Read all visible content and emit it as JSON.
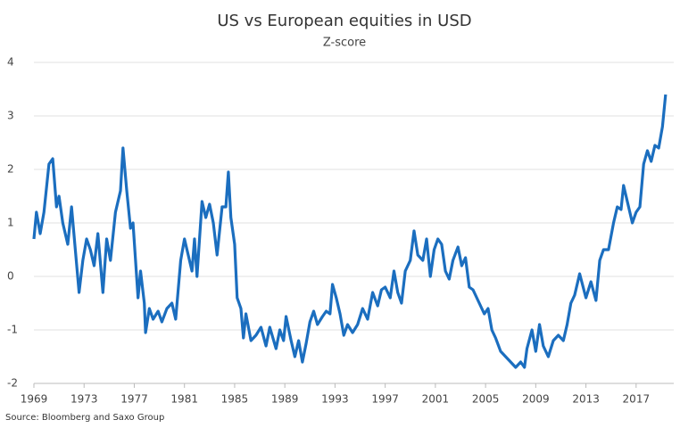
{
  "chart_data": {
    "type": "line",
    "title": "US vs European equities in USD",
    "subtitle": "Z-score",
    "source": "Source: Bloomberg and Saxo Group",
    "xlim": [
      1969,
      2020
    ],
    "xticks": [
      1969,
      1973,
      1977,
      1981,
      1985,
      1989,
      1993,
      1997,
      2001,
      2005,
      2009,
      2013,
      2017
    ],
    "ylim": [
      -2,
      4
    ],
    "yticks": [
      -2,
      -1,
      0,
      1,
      2,
      3,
      4
    ],
    "grid": true,
    "series": [
      {
        "color": "#1b6ebf",
        "x": [
          1969.0,
          1969.2,
          1969.5,
          1969.8,
          1970.2,
          1970.5,
          1970.8,
          1971.0,
          1971.3,
          1971.7,
          1972.0,
          1972.3,
          1972.6,
          1972.9,
          1973.2,
          1973.5,
          1973.8,
          1974.1,
          1974.5,
          1974.8,
          1975.1,
          1975.5,
          1975.9,
          1976.1,
          1976.4,
          1976.7,
          1976.9,
          1977.1,
          1977.3,
          1977.5,
          1977.8,
          1977.9,
          1978.2,
          1978.5,
          1978.9,
          1979.2,
          1979.6,
          1980.0,
          1980.3,
          1980.7,
          1981.0,
          1981.3,
          1981.6,
          1981.8,
          1982.0,
          1982.4,
          1982.7,
          1983.0,
          1983.3,
          1983.6,
          1984.0,
          1984.3,
          1984.5,
          1984.7,
          1985.0,
          1985.2,
          1985.5,
          1985.7,
          1985.9,
          1986.3,
          1986.7,
          1987.1,
          1987.5,
          1987.8,
          1988.3,
          1988.6,
          1988.9,
          1989.1,
          1989.5,
          1989.8,
          1990.1,
          1990.4,
          1990.7,
          1991.0,
          1991.3,
          1991.6,
          1992.0,
          1992.3,
          1992.6,
          1992.8,
          1993.1,
          1993.4,
          1993.7,
          1994.0,
          1994.4,
          1994.8,
          1995.2,
          1995.6,
          1996.0,
          1996.4,
          1996.7,
          1997.0,
          1997.4,
          1997.7,
          1998.0,
          1998.3,
          1998.6,
          1999.0,
          1999.3,
          1999.6,
          2000.0,
          2000.3,
          2000.6,
          2000.9,
          2001.2,
          2001.5,
          2001.8,
          2002.1,
          2002.4,
          2002.8,
          2003.1,
          2003.4,
          2003.7,
          2004.0,
          2004.5,
          2004.9,
          2005.2,
          2005.5,
          2005.8,
          2006.2,
          2006.6,
          2007.0,
          2007.4,
          2007.8,
          2008.1,
          2008.3,
          2008.7,
          2009.0,
          2009.3,
          2009.6,
          2010.0,
          2010.4,
          2010.8,
          2011.2,
          2011.5,
          2011.8,
          2012.1,
          2012.5,
          2013.0,
          2013.4,
          2013.8,
          2014.1,
          2014.4,
          2014.8,
          2015.2,
          2015.5,
          2015.8,
          2016.0,
          2016.3,
          2016.7,
          2017.0,
          2017.3,
          2017.6,
          2017.9,
          2018.2,
          2018.5,
          2018.8,
          2019.1,
          2019.35
        ],
        "values": [
          0.7,
          1.2,
          0.8,
          1.2,
          2.1,
          2.2,
          1.3,
          1.5,
          1.0,
          0.6,
          1.3,
          0.5,
          -0.3,
          0.3,
          0.7,
          0.5,
          0.2,
          0.8,
          -0.3,
          0.7,
          0.3,
          1.2,
          1.6,
          2.4,
          1.6,
          0.9,
          1.0,
          0.3,
          -0.4,
          0.1,
          -0.5,
          -1.05,
          -0.6,
          -0.8,
          -0.65,
          -0.85,
          -0.6,
          -0.5,
          -0.8,
          0.3,
          0.7,
          0.4,
          0.1,
          0.7,
          0.0,
          1.4,
          1.1,
          1.35,
          1.0,
          0.4,
          1.3,
          1.3,
          1.95,
          1.1,
          0.6,
          -0.4,
          -0.6,
          -1.15,
          -0.7,
          -1.2,
          -1.1,
          -0.95,
          -1.3,
          -0.95,
          -1.35,
          -1.0,
          -1.2,
          -0.75,
          -1.2,
          -1.5,
          -1.2,
          -1.6,
          -1.25,
          -0.85,
          -0.65,
          -0.9,
          -0.75,
          -0.65,
          -0.7,
          -0.15,
          -0.4,
          -0.7,
          -1.1,
          -0.9,
          -1.05,
          -0.9,
          -0.6,
          -0.8,
          -0.3,
          -0.55,
          -0.25,
          -0.2,
          -0.4,
          0.1,
          -0.3,
          -0.5,
          0.1,
          0.3,
          0.85,
          0.4,
          0.3,
          0.7,
          0.0,
          0.5,
          0.7,
          0.6,
          0.1,
          -0.05,
          0.3,
          0.55,
          0.2,
          0.35,
          -0.2,
          -0.25,
          -0.5,
          -0.7,
          -0.6,
          -1.0,
          -1.15,
          -1.4,
          -1.5,
          -1.6,
          -1.7,
          -1.6,
          -1.7,
          -1.35,
          -1.0,
          -1.4,
          -0.9,
          -1.3,
          -1.5,
          -1.2,
          -1.1,
          -1.2,
          -0.9,
          -0.5,
          -0.35,
          0.05,
          -0.4,
          -0.1,
          -0.45,
          0.3,
          0.5,
          0.5,
          1.0,
          1.3,
          1.25,
          1.7,
          1.4,
          1.0,
          1.2,
          1.3,
          2.1,
          2.35,
          2.15,
          2.45,
          2.4,
          2.8,
          3.4
        ]
      }
    ]
  }
}
